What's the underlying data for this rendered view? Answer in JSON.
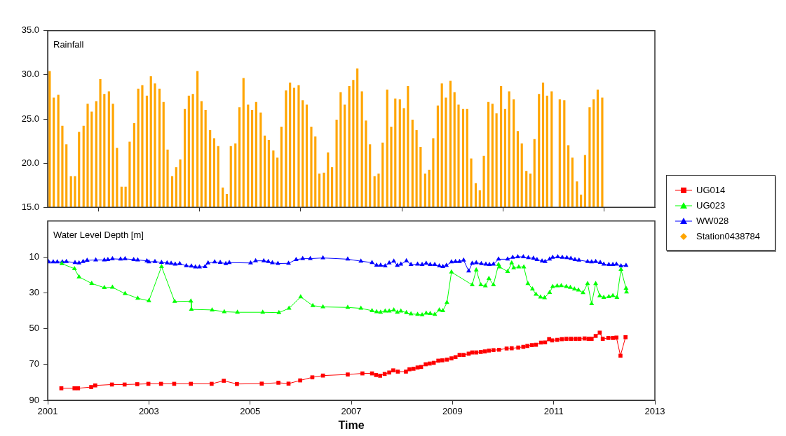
{
  "chart_data": [
    {
      "type": "bar",
      "title": "Rainfall",
      "legend": "right",
      "tick_labels": "y",
      "xlim": [
        2001,
        2013
      ],
      "xticks": [
        2001,
        2003,
        2005,
        2007,
        2009,
        2011,
        2013
      ],
      "ylim": [
        15,
        35
      ],
      "yticks": [
        {
          "value": 15,
          "label": "15.0"
        },
        {
          "value": 20,
          "label": "20.0"
        },
        {
          "value": 25,
          "label": "25.0"
        },
        {
          "value": 30,
          "label": "30.0"
        },
        {
          "value": 35,
          "label": "35.0"
        }
      ],
      "x": [
        2001.04,
        2001.12,
        2001.21,
        2001.29,
        2001.37,
        2001.46,
        2001.54,
        2001.62,
        2001.71,
        2001.79,
        2001.87,
        2001.96,
        2002.04,
        2002.12,
        2002.21,
        2002.29,
        2002.37,
        2002.46,
        2002.54,
        2002.62,
        2002.71,
        2002.79,
        2002.87,
        2002.96,
        2003.04,
        2003.12,
        2003.21,
        2003.29,
        2003.37,
        2003.46,
        2003.54,
        2003.62,
        2003.71,
        2003.79,
        2003.87,
        2003.96,
        2004.04,
        2004.12,
        2004.21,
        2004.29,
        2004.37,
        2004.46,
        2004.54,
        2004.62,
        2004.71,
        2004.79,
        2004.87,
        2004.96,
        2005.04,
        2005.12,
        2005.21,
        2005.29,
        2005.37,
        2005.46,
        2005.54,
        2005.62,
        2005.71,
        2005.79,
        2005.87,
        2005.96,
        2006.04,
        2006.12,
        2006.21,
        2006.29,
        2006.37,
        2006.46,
        2006.54,
        2006.62,
        2006.71,
        2006.79,
        2006.87,
        2006.96,
        2007.04,
        2007.12,
        2007.21,
        2007.29,
        2007.37,
        2007.46,
        2007.54,
        2007.62,
        2007.71,
        2007.79,
        2007.87,
        2007.96,
        2008.04,
        2008.12,
        2008.21,
        2008.29,
        2008.37,
        2008.46,
        2008.54,
        2008.62,
        2008.71,
        2008.79,
        2008.87,
        2008.96,
        2009.04,
        2009.12,
        2009.21,
        2009.29,
        2009.37,
        2009.46,
        2009.54,
        2009.62,
        2009.71,
        2009.79,
        2009.87,
        2009.96,
        2010.04,
        2010.12,
        2010.21,
        2010.29,
        2010.37,
        2010.46,
        2010.54,
        2010.62,
        2010.71,
        2010.79,
        2010.87,
        2010.96,
        2011.04,
        2011.12,
        2011.21,
        2011.29,
        2011.37,
        2011.46,
        2011.54,
        2011.62,
        2011.71,
        2011.79,
        2011.87,
        2011.96
      ],
      "series": [
        {
          "name": "Station0438784",
          "color": "#ffa500",
          "marker": "diamond",
          "values": [
            30.4,
            27.4,
            27.7,
            24.2,
            22.1,
            18.5,
            18.5,
            23.5,
            24.2,
            26.7,
            25.8,
            27.0,
            29.5,
            27.8,
            28.1,
            26.7,
            21.7,
            17.3,
            17.3,
            22.4,
            24.5,
            28.4,
            28.8,
            27.6,
            29.8,
            29.0,
            28.4,
            26.9,
            21.5,
            18.5,
            19.5,
            20.4,
            26.1,
            27.6,
            27.8,
            30.4,
            27.0,
            26.0,
            23.7,
            22.8,
            21.9,
            17.2,
            16.5,
            21.9,
            22.2,
            26.3,
            29.6,
            26.6,
            26.0,
            26.9,
            25.7,
            23.1,
            22.6,
            21.4,
            20.6,
            24.1,
            28.2,
            29.1,
            28.5,
            28.8,
            27.1,
            26.6,
            24.1,
            23.0,
            18.8,
            18.9,
            21.2,
            19.5,
            24.9,
            28.0,
            26.6,
            28.7,
            29.4,
            30.7,
            28.1,
            24.8,
            22.1,
            18.5,
            18.8,
            22.3,
            28.3,
            24.1,
            27.3,
            27.2,
            26.2,
            28.7,
            24.9,
            23.7,
            21.8,
            18.8,
            19.2,
            22.8,
            26.5,
            29.0,
            27.4,
            29.3,
            28.0,
            26.6,
            26.1,
            26.1,
            20.5,
            17.7,
            16.9,
            20.8,
            26.9,
            26.7,
            25.6,
            28.7,
            26.1,
            28.1,
            27.2,
            23.6,
            22.2,
            19.1,
            18.8,
            22.7,
            27.8,
            29.1,
            27.6,
            28.1,
            null,
            27.2,
            27.1,
            22.0,
            20.6,
            17.9,
            16.4,
            20.9,
            26.3,
            27.2,
            28.3,
            27.4
          ]
        }
      ]
    },
    {
      "type": "line",
      "title": "Water Level Depth [m]",
      "xlabel": "Time",
      "legend": "right",
      "xlim": [
        2001,
        2013
      ],
      "xticks": [
        2001,
        2003,
        2005,
        2007,
        2009,
        2011,
        2013
      ],
      "ylim": [
        90,
        -10
      ],
      "yticks": [
        10,
        30,
        50,
        70,
        90
      ],
      "series": [
        {
          "name": "UG014",
          "color": "#ff0000",
          "marker": "square",
          "x": [
            2001.27,
            2001.53,
            2001.6,
            2001.86,
            2001.94,
            2002.27,
            2002.52,
            2002.77,
            2002.99,
            2003.24,
            2003.5,
            2003.83,
            2004.24,
            2004.48,
            2004.74,
            2005.23,
            2005.56,
            2005.76,
            2005.99,
            2006.23,
            2006.44,
            2006.93,
            2007.22,
            2007.41,
            2007.49,
            2007.57,
            2007.66,
            2007.75,
            2007.83,
            2007.92,
            2008.08,
            2008.15,
            2008.23,
            2008.31,
            2008.38,
            2008.47,
            2008.55,
            2008.63,
            2008.72,
            2008.8,
            2008.89,
            2008.98,
            2009.06,
            2009.14,
            2009.22,
            2009.32,
            2009.39,
            2009.47,
            2009.56,
            2009.64,
            2009.72,
            2009.81,
            2009.92,
            2010.07,
            2010.17,
            2010.3,
            2010.4,
            2010.48,
            2010.57,
            2010.65,
            2010.75,
            2010.83,
            2010.91,
            2010.97,
            2011.07,
            2011.16,
            2011.25,
            2011.34,
            2011.43,
            2011.51,
            2011.61,
            2011.69,
            2011.75,
            2011.83,
            2011.91,
            2011.97,
            2012.08,
            2012.17,
            2012.24,
            2012.32,
            2012.42
          ],
          "values": [
            83.3,
            83.3,
            83.3,
            82.6,
            81.7,
            81.2,
            81.2,
            81.0,
            80.8,
            80.8,
            80.8,
            80.8,
            80.8,
            79.1,
            80.9,
            80.7,
            80.2,
            80.7,
            78.9,
            77.2,
            76.2,
            75.6,
            75.0,
            75.0,
            75.9,
            76.3,
            75.3,
            74.5,
            73.3,
            74.0,
            74.0,
            72.7,
            72.4,
            71.7,
            71.4,
            69.9,
            69.5,
            69.1,
            67.9,
            67.7,
            67.3,
            66.6,
            65.9,
            64.7,
            64.7,
            64.0,
            63.3,
            63.3,
            63.0,
            62.7,
            62.3,
            62.0,
            61.8,
            61.1,
            61.0,
            60.6,
            60.2,
            59.7,
            59.2,
            59.0,
            57.8,
            57.7,
            55.9,
            56.6,
            56.3,
            55.9,
            55.7,
            55.7,
            55.7,
            55.7,
            55.5,
            55.7,
            55.7,
            54.1,
            52.3,
            55.7,
            55.2,
            55.2,
            55.0,
            65.1,
            54.8
          ]
        },
        {
          "name": "UG023",
          "color": "#00ff00",
          "marker": "triangle",
          "x": [
            2001.28,
            2001.53,
            2001.62,
            2001.87,
            2002.12,
            2002.28,
            2002.53,
            2002.78,
            2003.0,
            2003.25,
            2003.51,
            2003.83,
            2003.84,
            2004.25,
            2004.49,
            2004.75,
            2005.25,
            2005.57,
            2005.77,
            2006.0,
            2006.24,
            2006.44,
            2006.93,
            2007.19,
            2007.41,
            2007.5,
            2007.58,
            2007.67,
            2007.75,
            2007.84,
            2007.91,
            2007.98,
            2008.09,
            2008.18,
            2008.31,
            2008.4,
            2008.48,
            2008.56,
            2008.65,
            2008.74,
            2008.81,
            2008.89,
            2008.98,
            2009.39,
            2009.47,
            2009.56,
            2009.65,
            2009.72,
            2009.81,
            2009.91,
            2009.93,
            2010.09,
            2010.17,
            2010.21,
            2010.31,
            2010.41,
            2010.49,
            2010.58,
            2010.65,
            2010.74,
            2010.82,
            2010.92,
            2010.98,
            2011.07,
            2011.15,
            2011.25,
            2011.33,
            2011.41,
            2011.49,
            2011.58,
            2011.67,
            2011.75,
            2011.83,
            2011.91,
            2011.99,
            2012.09,
            2012.17,
            2012.25,
            2012.33,
            2012.43,
            2012.44
          ],
          "values": [
            13.8,
            16.6,
            21.2,
            24.8,
            27.2,
            27.0,
            30.5,
            33.1,
            34.5,
            15.4,
            34.9,
            34.7,
            39.3,
            39.6,
            40.6,
            40.9,
            40.9,
            41.1,
            38.7,
            32.3,
            37.2,
            37.9,
            38.2,
            38.7,
            40.0,
            40.6,
            40.9,
            40.2,
            40.2,
            39.6,
            40.9,
            40.2,
            41.1,
            41.8,
            42.1,
            42.4,
            41.4,
            41.6,
            42.1,
            39.6,
            40.0,
            35.5,
            18.5,
            25.6,
            17.3,
            25.6,
            26.2,
            22.1,
            25.6,
            14.3,
            15.6,
            18.2,
            13.4,
            16.1,
            15.6,
            15.6,
            24.9,
            27.9,
            30.9,
            32.4,
            32.8,
            29.9,
            26.6,
            26.2,
            26.1,
            26.6,
            27.1,
            27.9,
            28.5,
            30.0,
            24.9,
            36.1,
            24.9,
            31.7,
            32.6,
            32.2,
            31.6,
            32.6,
            17.0,
            27.5,
            29.6
          ]
        },
        {
          "name": "WW028",
          "color": "#0000ff",
          "marker": "triangle",
          "x": [
            2001.02,
            2001.11,
            2001.19,
            2001.29,
            2001.37,
            2001.54,
            2001.62,
            2001.7,
            2001.78,
            2001.95,
            2002.12,
            2002.19,
            2002.28,
            2002.44,
            2002.53,
            2002.7,
            2002.78,
            2002.96,
            2003.0,
            2003.12,
            2003.25,
            2003.36,
            2003.44,
            2003.52,
            2003.61,
            2003.74,
            2003.84,
            2003.92,
            2004.0,
            2004.11,
            2004.17,
            2004.3,
            2004.41,
            2004.52,
            2004.59,
            2005.01,
            2005.11,
            2005.27,
            2005.36,
            2005.44,
            2005.55,
            2005.76,
            2005.91,
            2006.04,
            2006.19,
            2006.44,
            2006.93,
            2007.19,
            2007.41,
            2007.5,
            2007.58,
            2007.67,
            2007.75,
            2007.84,
            2007.91,
            2007.98,
            2008.09,
            2008.18,
            2008.31,
            2008.4,
            2008.48,
            2008.56,
            2008.65,
            2008.74,
            2008.81,
            2008.88,
            2008.98,
            2009.06,
            2009.14,
            2009.22,
            2009.32,
            2009.39,
            2009.47,
            2009.57,
            2009.66,
            2009.73,
            2009.81,
            2009.91,
            2010.09,
            2010.19,
            2010.29,
            2010.4,
            2010.5,
            2010.6,
            2010.67,
            2010.77,
            2010.83,
            2010.92,
            2010.98,
            2011.08,
            2011.17,
            2011.26,
            2011.34,
            2011.42,
            2011.5,
            2011.67,
            2011.75,
            2011.83,
            2011.92,
            2011.99,
            2012.09,
            2012.17,
            2012.24,
            2012.33,
            2012.43
          ],
          "values": [
            12.8,
            12.8,
            12.8,
            12.8,
            12.6,
            13.2,
            13.4,
            12.6,
            11.9,
            11.7,
            11.7,
            11.5,
            11.1,
            11.3,
            11.1,
            11.5,
            11.7,
            12.2,
            12.8,
            12.6,
            13.1,
            13.4,
            13.6,
            14.1,
            13.8,
            15.0,
            15.2,
            15.6,
            15.6,
            15.4,
            13.4,
            12.8,
            13.1,
            13.8,
            13.2,
            13.4,
            12.2,
            12.2,
            12.6,
            13.3,
            13.7,
            13.6,
            11.5,
            11.0,
            11.0,
            10.6,
            11.3,
            12.4,
            13.2,
            14.7,
            14.7,
            15.1,
            13.4,
            12.4,
            14.8,
            14.1,
            12.2,
            14.3,
            14.1,
            14.3,
            13.6,
            14.3,
            14.3,
            15.1,
            15.4,
            14.8,
            12.8,
            12.6,
            12.6,
            11.8,
            17.9,
            13.6,
            13.3,
            13.8,
            14.1,
            14.3,
            14.1,
            11.3,
            11.3,
            10.3,
            10.0,
            10.0,
            10.5,
            10.8,
            11.5,
            12.3,
            12.6,
            11.3,
            10.3,
            10.0,
            10.3,
            10.5,
            10.9,
            11.5,
            11.8,
            12.6,
            12.8,
            12.6,
            13.1,
            14.1,
            14.3,
            14.3,
            14.1,
            15.1,
            14.8
          ]
        }
      ]
    }
  ]
}
